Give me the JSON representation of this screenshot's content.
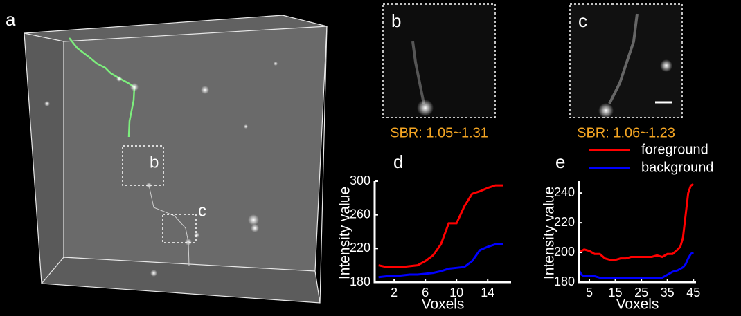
{
  "panel_labels": [
    "a",
    "b",
    "c",
    "d",
    "e"
  ],
  "box_labels": [
    "b",
    "c"
  ],
  "sbr": [
    "SBR: 1.05~1.31",
    "SBR: 1.06~1.23"
  ],
  "chart_data": [
    {
      "type": "line",
      "y_label": "Intensity value",
      "x_label": "Voxels",
      "x": [
        0,
        1,
        2,
        3,
        4,
        5,
        6,
        7,
        8,
        9,
        10,
        11,
        12,
        13,
        14,
        15,
        16
      ],
      "xlim": [
        -0.5,
        17
      ],
      "xticks": [
        2,
        6,
        10,
        14
      ],
      "ylim": [
        180,
        300
      ],
      "yticks": [
        180,
        220,
        260,
        300
      ],
      "series": [
        {
          "color": "#ff0000",
          "values": [
            200,
            198,
            198,
            198,
            199,
            200,
            205,
            212,
            225,
            250,
            250,
            270,
            285,
            288,
            292,
            295,
            295
          ]
        },
        {
          "color": "#0000ff",
          "values": [
            186,
            187,
            187,
            188,
            189,
            189,
            190,
            191,
            193,
            196,
            197,
            198,
            205,
            218,
            222,
            225,
            225
          ]
        }
      ]
    },
    {
      "type": "line",
      "y_label": "Intensity value",
      "x_label": "Voxels",
      "x": [
        1,
        2,
        3,
        5,
        7,
        9,
        11,
        13,
        15,
        17,
        19,
        21,
        23,
        25,
        27,
        29,
        31,
        33,
        35,
        37,
        39,
        40,
        41,
        42,
        43,
        44,
        45
      ],
      "xlim": [
        1,
        46
      ],
      "xticks": [
        5,
        15,
        25,
        35,
        45
      ],
      "ylim": [
        180,
        248
      ],
      "yticks": [
        180,
        200,
        220,
        240
      ],
      "series": [
        {
          "name": "foreground",
          "color": "#ff0000",
          "values": [
            201,
            201,
            202,
            201,
            199,
            199,
            196,
            195,
            195,
            196,
            196,
            197,
            197,
            197,
            197,
            197,
            198,
            197,
            199,
            199,
            202,
            204,
            210,
            225,
            240,
            245,
            246
          ]
        },
        {
          "name": "background",
          "color": "#0000ff",
          "values": [
            188,
            185,
            184,
            184,
            184,
            183,
            183,
            183,
            183,
            183,
            183,
            183,
            183,
            183,
            183,
            183,
            183,
            183,
            185,
            187,
            188,
            189,
            190,
            192,
            196,
            199,
            200
          ]
        }
      ]
    }
  ]
}
